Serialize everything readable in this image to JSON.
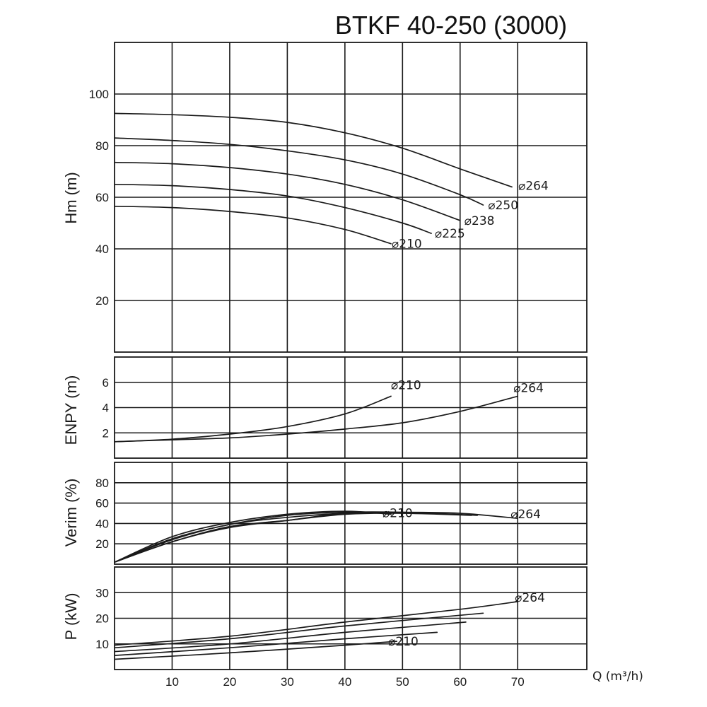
{
  "chart_data": {
    "type": "line",
    "title": "BTKF 40-250 (3000)",
    "xlabel": "Q (m³/h)",
    "xlim": [
      0,
      82
    ],
    "x_ticks": [
      10,
      20,
      30,
      40,
      50,
      60,
      70
    ],
    "panels": [
      {
        "id": "head",
        "ylabel": "Hm (m)",
        "ylim": [
          0,
          120
        ],
        "y_ticks": [
          20,
          40,
          60,
          80,
          100
        ],
        "series": [
          {
            "name": "⌀264",
            "points": [
              [
                0,
                92.5
              ],
              [
                10,
                92
              ],
              [
                20,
                91
              ],
              [
                30,
                89
              ],
              [
                40,
                85
              ],
              [
                50,
                79
              ],
              [
                60,
                71
              ],
              [
                69,
                64
              ]
            ]
          },
          {
            "name": "⌀250",
            "points": [
              [
                0,
                83
              ],
              [
                10,
                82
              ],
              [
                20,
                80.5
              ],
              [
                30,
                78
              ],
              [
                40,
                74.5
              ],
              [
                50,
                69
              ],
              [
                60,
                61
              ],
              [
                64,
                57
              ]
            ]
          },
          {
            "name": "⌀238",
            "points": [
              [
                0,
                73.5
              ],
              [
                10,
                73
              ],
              [
                20,
                71.5
              ],
              [
                30,
                69
              ],
              [
                40,
                65
              ],
              [
                50,
                59
              ],
              [
                60,
                51
              ]
            ]
          },
          {
            "name": "⌀225",
            "points": [
              [
                0,
                65
              ],
              [
                10,
                64.5
              ],
              [
                20,
                63
              ],
              [
                30,
                60.5
              ],
              [
                40,
                56
              ],
              [
                50,
                50
              ],
              [
                55,
                46
              ]
            ]
          },
          {
            "name": "⌀210",
            "points": [
              [
                0,
                56.5
              ],
              [
                10,
                56
              ],
              [
                20,
                54.5
              ],
              [
                30,
                52
              ],
              [
                40,
                47.5
              ],
              [
                48,
                42
              ]
            ]
          }
        ]
      },
      {
        "id": "npsh",
        "ylabel": "ENPY (m)",
        "ylim": [
          0,
          8
        ],
        "y_ticks": [
          2,
          4,
          6
        ],
        "series": [
          {
            "name": "⌀210",
            "points": [
              [
                0,
                1.3
              ],
              [
                10,
                1.5
              ],
              [
                20,
                1.9
              ],
              [
                30,
                2.5
              ],
              [
                40,
                3.5
              ],
              [
                48,
                4.9
              ]
            ]
          },
          {
            "name": "⌀264",
            "points": [
              [
                0,
                1.3
              ],
              [
                10,
                1.45
              ],
              [
                20,
                1.6
              ],
              [
                30,
                1.9
              ],
              [
                40,
                2.3
              ],
              [
                50,
                2.8
              ],
              [
                60,
                3.7
              ],
              [
                70,
                4.9
              ]
            ]
          }
        ]
      },
      {
        "id": "efficiency",
        "ylabel": "Verim (%)",
        "ylim": [
          0,
          100
        ],
        "y_ticks": [
          20,
          40,
          60,
          80
        ],
        "series": [
          {
            "name": "⌀264",
            "points": [
              [
                0,
                2
              ],
              [
                10,
                24
              ],
              [
                20,
                39
              ],
              [
                30,
                46
              ],
              [
                40,
                50
              ],
              [
                50,
                51
              ],
              [
                60,
                50
              ],
              [
                70,
                45
              ]
            ]
          },
          {
            "name": "⌀250",
            "points": [
              [
                0,
                2
              ],
              [
                10,
                25
              ],
              [
                20,
                39
              ],
              [
                30,
                48
              ],
              [
                40,
                51
              ],
              [
                50,
                51
              ],
              [
                63,
                48
              ]
            ]
          },
          {
            "name": "⌀238",
            "points": [
              [
                0,
                2
              ],
              [
                10,
                22
              ],
              [
                20,
                37
              ],
              [
                30,
                43
              ],
              [
                40,
                49
              ],
              [
                50,
                50
              ],
              [
                62,
                48
              ]
            ]
          },
          {
            "name": "⌀225",
            "points": [
              [
                0,
                2
              ],
              [
                10,
                22
              ],
              [
                20,
                36
              ],
              [
                30,
                43
              ],
              [
                40,
                50
              ],
              [
                48,
                50
              ]
            ]
          },
          {
            "name": "⌀210",
            "points": [
              [
                0,
                2
              ],
              [
                10,
                27
              ],
              [
                20,
                41
              ],
              [
                30,
                49
              ],
              [
                40,
                52
              ],
              [
                48,
                49
              ]
            ]
          }
        ]
      },
      {
        "id": "power",
        "ylabel": "P (kW)",
        "ylim": [
          0,
          40
        ],
        "y_ticks": [
          10,
          20,
          30
        ],
        "series": [
          {
            "name": "⌀264",
            "points": [
              [
                0,
                9.5
              ],
              [
                20,
                13
              ],
              [
                40,
                18.5
              ],
              [
                60,
                23.5
              ],
              [
                70,
                26.5
              ]
            ]
          },
          {
            "name": "⌀250",
            "points": [
              [
                0,
                8.5
              ],
              [
                20,
                12
              ],
              [
                40,
                17
              ],
              [
                64,
                22
              ]
            ]
          },
          {
            "name": "⌀238",
            "points": [
              [
                0,
                7
              ],
              [
                20,
                10
              ],
              [
                40,
                14.5
              ],
              [
                61,
                18.5
              ]
            ]
          },
          {
            "name": "⌀225",
            "points": [
              [
                0,
                5.5
              ],
              [
                20,
                8.5
              ],
              [
                40,
                12
              ],
              [
                56,
                14.5
              ]
            ]
          },
          {
            "name": "⌀210",
            "points": [
              [
                0,
                4
              ],
              [
                20,
                6.5
              ],
              [
                40,
                9.5
              ],
              [
                49,
                11
              ]
            ]
          }
        ]
      }
    ]
  },
  "labels": {
    "head": [
      "⌀264",
      "⌀250",
      "⌀238",
      "⌀225",
      "⌀210"
    ],
    "npsh": [
      "⌀210",
      "⌀264"
    ],
    "efficiency": [
      "⌀264",
      "⌀210"
    ],
    "power": [
      "⌀264",
      "⌀210"
    ]
  }
}
